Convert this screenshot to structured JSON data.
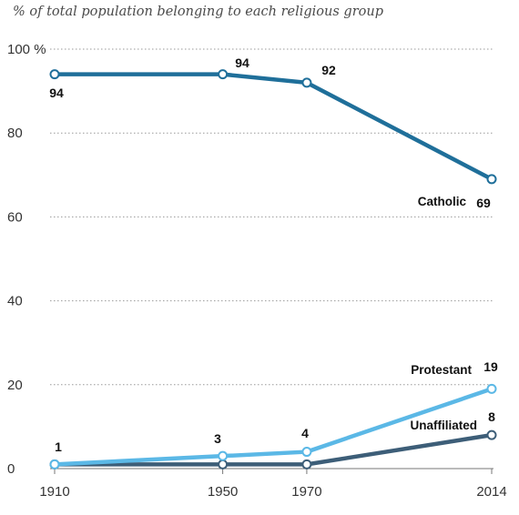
{
  "chart_data": {
    "type": "line",
    "title": "% of total population belonging to each religious group",
    "x": [
      1910,
      1950,
      1970,
      2014
    ],
    "x_tick_labels": [
      "1910",
      "1950",
      "1970",
      "2014"
    ],
    "y_tick_labels": [
      "0",
      "20",
      "40",
      "60",
      "80",
      "100 %"
    ],
    "ylim": [
      0,
      100
    ],
    "grid": true,
    "series": [
      {
        "name": "Catholic",
        "values": [
          94,
          94,
          92,
          69
        ],
        "labels": [
          "94",
          "94",
          "92",
          "69"
        ],
        "color": "#1f6f9a"
      },
      {
        "name": "Protestant",
        "values": [
          1,
          3,
          4,
          19
        ],
        "labels": [
          "1",
          "3",
          "4",
          "19"
        ],
        "color": "#5bb8e6"
      },
      {
        "name": "Unaffiliated",
        "values": [
          1,
          1,
          1,
          8
        ],
        "labels": [
          "",
          "",
          "",
          "8"
        ],
        "color": "#3d5e78"
      }
    ]
  }
}
